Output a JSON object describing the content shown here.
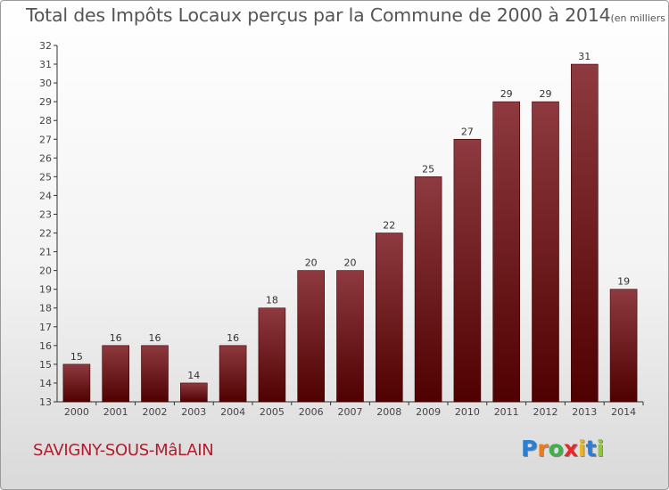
{
  "title": "Total des Impôts Locaux perçus par la Commune de 2000 à 2014",
  "unit": "(en milliers d'€)",
  "commune": "SAVIGNY-SOUS-MâLAIN",
  "logo": {
    "letters": [
      "P",
      "r",
      "o",
      "x",
      "i",
      "t",
      "i"
    ],
    "colors": [
      "#2a7fd4",
      "#f07a1a",
      "#3bb24a",
      "#e8262b",
      "#f0b515",
      "#2a7fd4",
      "#8fc63f"
    ]
  },
  "colors": {
    "bar_top": "#8e3a40",
    "bar_bottom": "#4f0000",
    "commune": "#b01d2e"
  },
  "chart_data": {
    "type": "bar",
    "categories": [
      "2000",
      "2001",
      "2002",
      "2003",
      "2004",
      "2005",
      "2006",
      "2007",
      "2008",
      "2009",
      "2010",
      "2011",
      "2012",
      "2013",
      "2014"
    ],
    "values": [
      15,
      16,
      16,
      14,
      16,
      18,
      20,
      20,
      22,
      25,
      27,
      29,
      29,
      31,
      19
    ],
    "ylim": [
      13,
      32
    ],
    "yticks": [
      13,
      14,
      15,
      16,
      17,
      18,
      19,
      20,
      21,
      22,
      23,
      24,
      25,
      26,
      27,
      28,
      29,
      30,
      31,
      32
    ],
    "grid": false,
    "data_labels": true
  }
}
